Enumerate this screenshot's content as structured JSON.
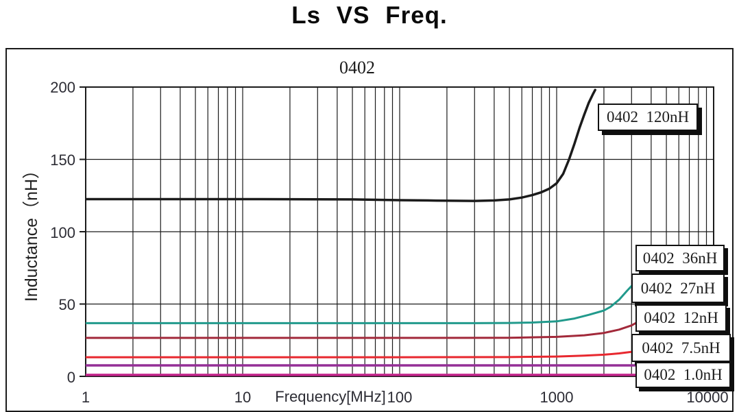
{
  "page": {
    "title": "Ls VS Freq."
  },
  "chart": {
    "subtitle": "0402",
    "y_axis_label": "Inductance（nH）",
    "x_axis_label": "Frequency[MHz]",
    "y_tick_labels": [
      "200",
      "150",
      "100",
      "50",
      "0"
    ],
    "x_tick_labels": [
      "1",
      "10",
      "100",
      "1000",
      "10000"
    ]
  },
  "legend": {
    "items": [
      {
        "label": "0402  120nH"
      },
      {
        "label": "0402  36nH"
      },
      {
        "label": "0402  27nH"
      },
      {
        "label": "0402  12nH"
      },
      {
        "label": "0402  7.5nH"
      },
      {
        "label": "0402  1.0nH"
      }
    ]
  },
  "chart_data": {
    "type": "line",
    "title": "Ls VS Freq.",
    "subtitle": "0402",
    "xlabel": "Frequency[MHz]",
    "ylabel": "Inductance（nH）",
    "x_scale": "log",
    "xlim": [
      1,
      10000
    ],
    "ylim": [
      0,
      200
    ],
    "x_ticks": [
      1,
      10,
      100,
      1000,
      10000
    ],
    "y_ticks": [
      0,
      50,
      100,
      150,
      200
    ],
    "grid": {
      "x_minor_log": true,
      "y_major_step": 50,
      "color": "#1a1a1a"
    },
    "legend_position": "right-overlay-boxes",
    "series": [
      {
        "name": "0402 120nH",
        "color": "#1b1b1b",
        "width": 3.5,
        "points": [
          [
            1,
            122.5
          ],
          [
            3,
            122.5
          ],
          [
            10,
            122.5
          ],
          [
            30,
            122.4
          ],
          [
            50,
            122.3
          ],
          [
            100,
            121.8
          ],
          [
            150,
            121.6
          ],
          [
            200,
            121.4
          ],
          [
            300,
            121.3
          ],
          [
            400,
            121.6
          ],
          [
            500,
            122.3
          ],
          [
            600,
            123.6
          ],
          [
            700,
            125.3
          ],
          [
            800,
            127.3
          ],
          [
            900,
            129.8
          ],
          [
            1000,
            133.5
          ],
          [
            1100,
            140
          ],
          [
            1200,
            150
          ],
          [
            1300,
            161
          ],
          [
            1400,
            172
          ],
          [
            1500,
            181
          ],
          [
            1600,
            189
          ],
          [
            1700,
            195
          ],
          [
            1760,
            198
          ]
        ]
      },
      {
        "name": "0402 36nH",
        "color": "#219a8c",
        "width": 3,
        "points": [
          [
            1,
            36.8
          ],
          [
            10,
            36.8
          ],
          [
            100,
            36.8
          ],
          [
            300,
            36.8
          ],
          [
            500,
            36.9
          ],
          [
            700,
            37.2
          ],
          [
            1000,
            38
          ],
          [
            1300,
            40
          ],
          [
            1600,
            42.5
          ],
          [
            2000,
            45.5
          ],
          [
            2200,
            48
          ],
          [
            2500,
            53
          ],
          [
            2800,
            59
          ],
          [
            3000,
            62.5
          ],
          [
            3250,
            68
          ]
        ]
      },
      {
        "name": "0402 27nH",
        "color": "#a2293a",
        "width": 3,
        "points": [
          [
            1,
            26.6
          ],
          [
            10,
            26.6
          ],
          [
            100,
            26.6
          ],
          [
            500,
            26.7
          ],
          [
            1000,
            27.3
          ],
          [
            1500,
            28.4
          ],
          [
            2000,
            30
          ],
          [
            2500,
            32.3
          ],
          [
            3000,
            35.2
          ],
          [
            3250,
            37.3
          ]
        ]
      },
      {
        "name": "0402 12nH",
        "color": "#e8282f",
        "width": 3,
        "points": [
          [
            1,
            13.2
          ],
          [
            10,
            13.2
          ],
          [
            100,
            13.2
          ],
          [
            500,
            13.3
          ],
          [
            1000,
            13.7
          ],
          [
            1500,
            14.3
          ],
          [
            2000,
            15
          ],
          [
            2500,
            15.9
          ],
          [
            3000,
            16.9
          ],
          [
            3250,
            17.6
          ]
        ]
      },
      {
        "name": "0402 7.5nH",
        "color": "#942e96",
        "width": 3.5,
        "points": [
          [
            1,
            7.6
          ],
          [
            100,
            7.6
          ],
          [
            1000,
            7.6
          ],
          [
            3250,
            7.6
          ]
        ]
      },
      {
        "name": "0402 1.0nH",
        "color": "#c4258c",
        "width": 3.5,
        "points": [
          [
            1,
            1.0
          ],
          [
            100,
            1.0
          ],
          [
            1000,
            1.0
          ],
          [
            3250,
            1.0
          ]
        ]
      }
    ]
  }
}
